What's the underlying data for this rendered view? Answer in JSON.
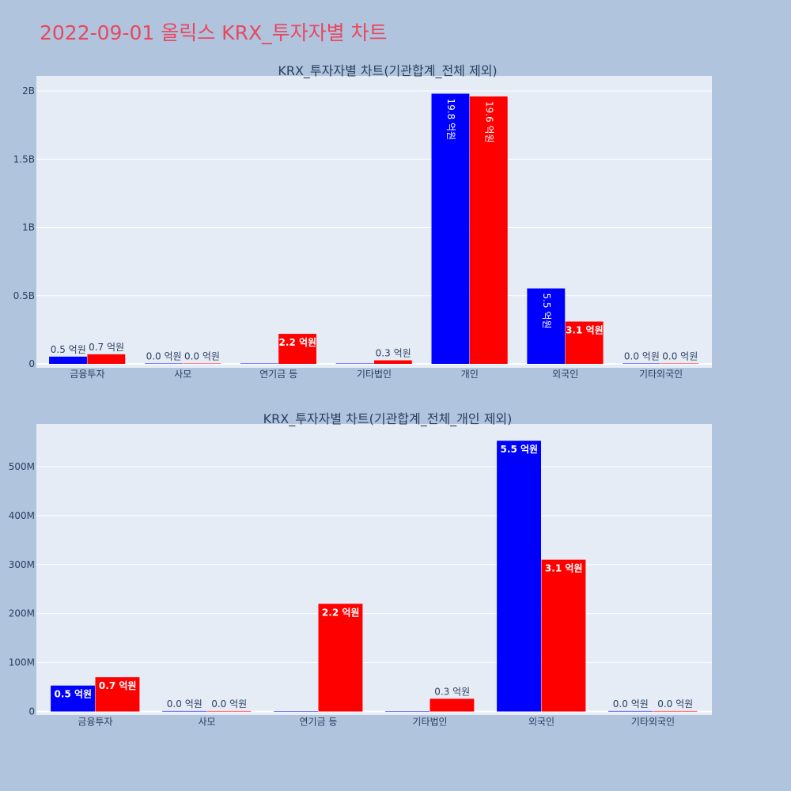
{
  "page": {
    "title": "2022-09-01 올릭스 KRX_투자자별 차트"
  },
  "colors": {
    "buy": "#0000ff",
    "sell": "#ff0000",
    "plot_bg": "#e5ecf6",
    "page_bg": "#b0c4de",
    "title": "#e8475f"
  },
  "chart_data": [
    {
      "type": "bar",
      "title": "KRX_투자자별 차트(기관합계_전체 제외)",
      "categories": [
        "금융투자",
        "사모",
        "연기금 등",
        "기타법인",
        "개인",
        "외국인",
        "기타외국인"
      ],
      "series": [
        {
          "color": "#0000ff",
          "values": [
            53000000,
            1000000,
            0,
            0,
            1980000000,
            553000000,
            1000000
          ],
          "labels": [
            "0.5 억원",
            "0.0 억원",
            "",
            "",
            "19.8 억원",
            "5.5 억원",
            "0.0 억원"
          ]
        },
        {
          "color": "#ff0000",
          "values": [
            70000000,
            1000000,
            220000000,
            26000000,
            1960000000,
            310000000,
            1000000
          ],
          "labels": [
            "0.7 억원",
            "0.0 억원",
            "2.2 억원",
            "0.3 억원",
            "19.6 억원",
            "3.1 억원",
            "0.0 억원"
          ]
        }
      ],
      "ylim": [
        0,
        2100000000
      ],
      "yticks": [
        0,
        500000000,
        1000000000,
        1500000000,
        2000000000
      ],
      "ytick_labels": [
        "0",
        "0.5B",
        "1B",
        "1.5B",
        "2B"
      ],
      "grid": true
    },
    {
      "type": "bar",
      "title": "KRX_투자자별 차트(기관합계_전체_개인 제외)",
      "categories": [
        "금융투자",
        "사모",
        "연기금 등",
        "기타법인",
        "외국인",
        "기타외국인"
      ],
      "series": [
        {
          "color": "#0000ff",
          "values": [
            53000000,
            1000000,
            0,
            0,
            553000000,
            1000000
          ],
          "labels": [
            "0.5 억원",
            "0.0 억원",
            "",
            "",
            "5.5 억원",
            "0.0 억원"
          ]
        },
        {
          "color": "#ff0000",
          "values": [
            70000000,
            1000000,
            220000000,
            26000000,
            310000000,
            1000000
          ],
          "labels": [
            "0.7 억원",
            "0.0 억원",
            "2.2 억원",
            "0.3 억원",
            "3.1 억원",
            "0.0 억원"
          ]
        }
      ],
      "ylim": [
        0,
        585000000
      ],
      "yticks": [
        0,
        100000000,
        200000000,
        300000000,
        400000000,
        500000000
      ],
      "ytick_labels": [
        "0",
        "100M",
        "200M",
        "300M",
        "400M",
        "500M"
      ],
      "grid": true
    }
  ]
}
